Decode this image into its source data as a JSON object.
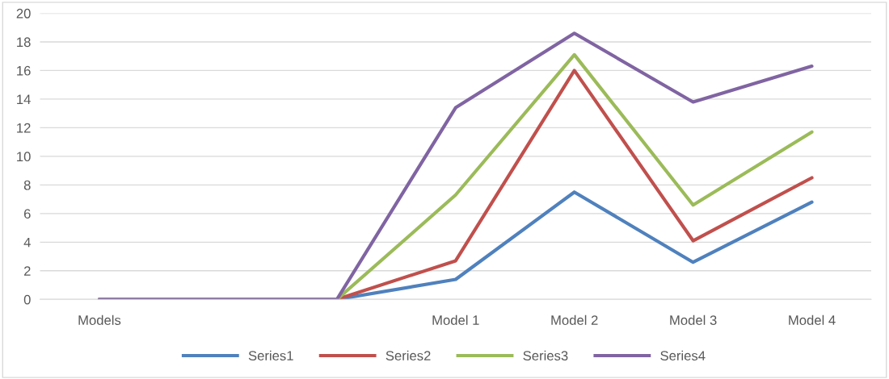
{
  "chart_data": {
    "type": "line",
    "categories": [
      "Models",
      null,
      null,
      "Model 1",
      "Model 2",
      "Model 3",
      "Model 4"
    ],
    "series": [
      {
        "name": "Series1",
        "color": "#4f81bd",
        "values": [
          0,
          0,
          0,
          1.4,
          7.5,
          2.6,
          6.8
        ]
      },
      {
        "name": "Series2",
        "color": "#c0504d",
        "values": [
          0,
          0,
          0,
          2.7,
          16,
          4.1,
          8.5
        ]
      },
      {
        "name": "Series3",
        "color": "#9bbb59",
        "values": [
          0,
          0,
          0,
          7.3,
          17.1,
          6.6,
          11.7
        ]
      },
      {
        "name": "Series4",
        "color": "#8064a2",
        "values": [
          0,
          0,
          0,
          13.4,
          18.6,
          13.8,
          16.3
        ]
      }
    ],
    "ylim": [
      0,
      20
    ],
    "yticks": [
      0,
      2,
      4,
      6,
      8,
      10,
      12,
      14,
      16,
      18,
      20
    ],
    "grid": "y",
    "legend": "bottom",
    "marker": "none",
    "line_style": "solid"
  }
}
